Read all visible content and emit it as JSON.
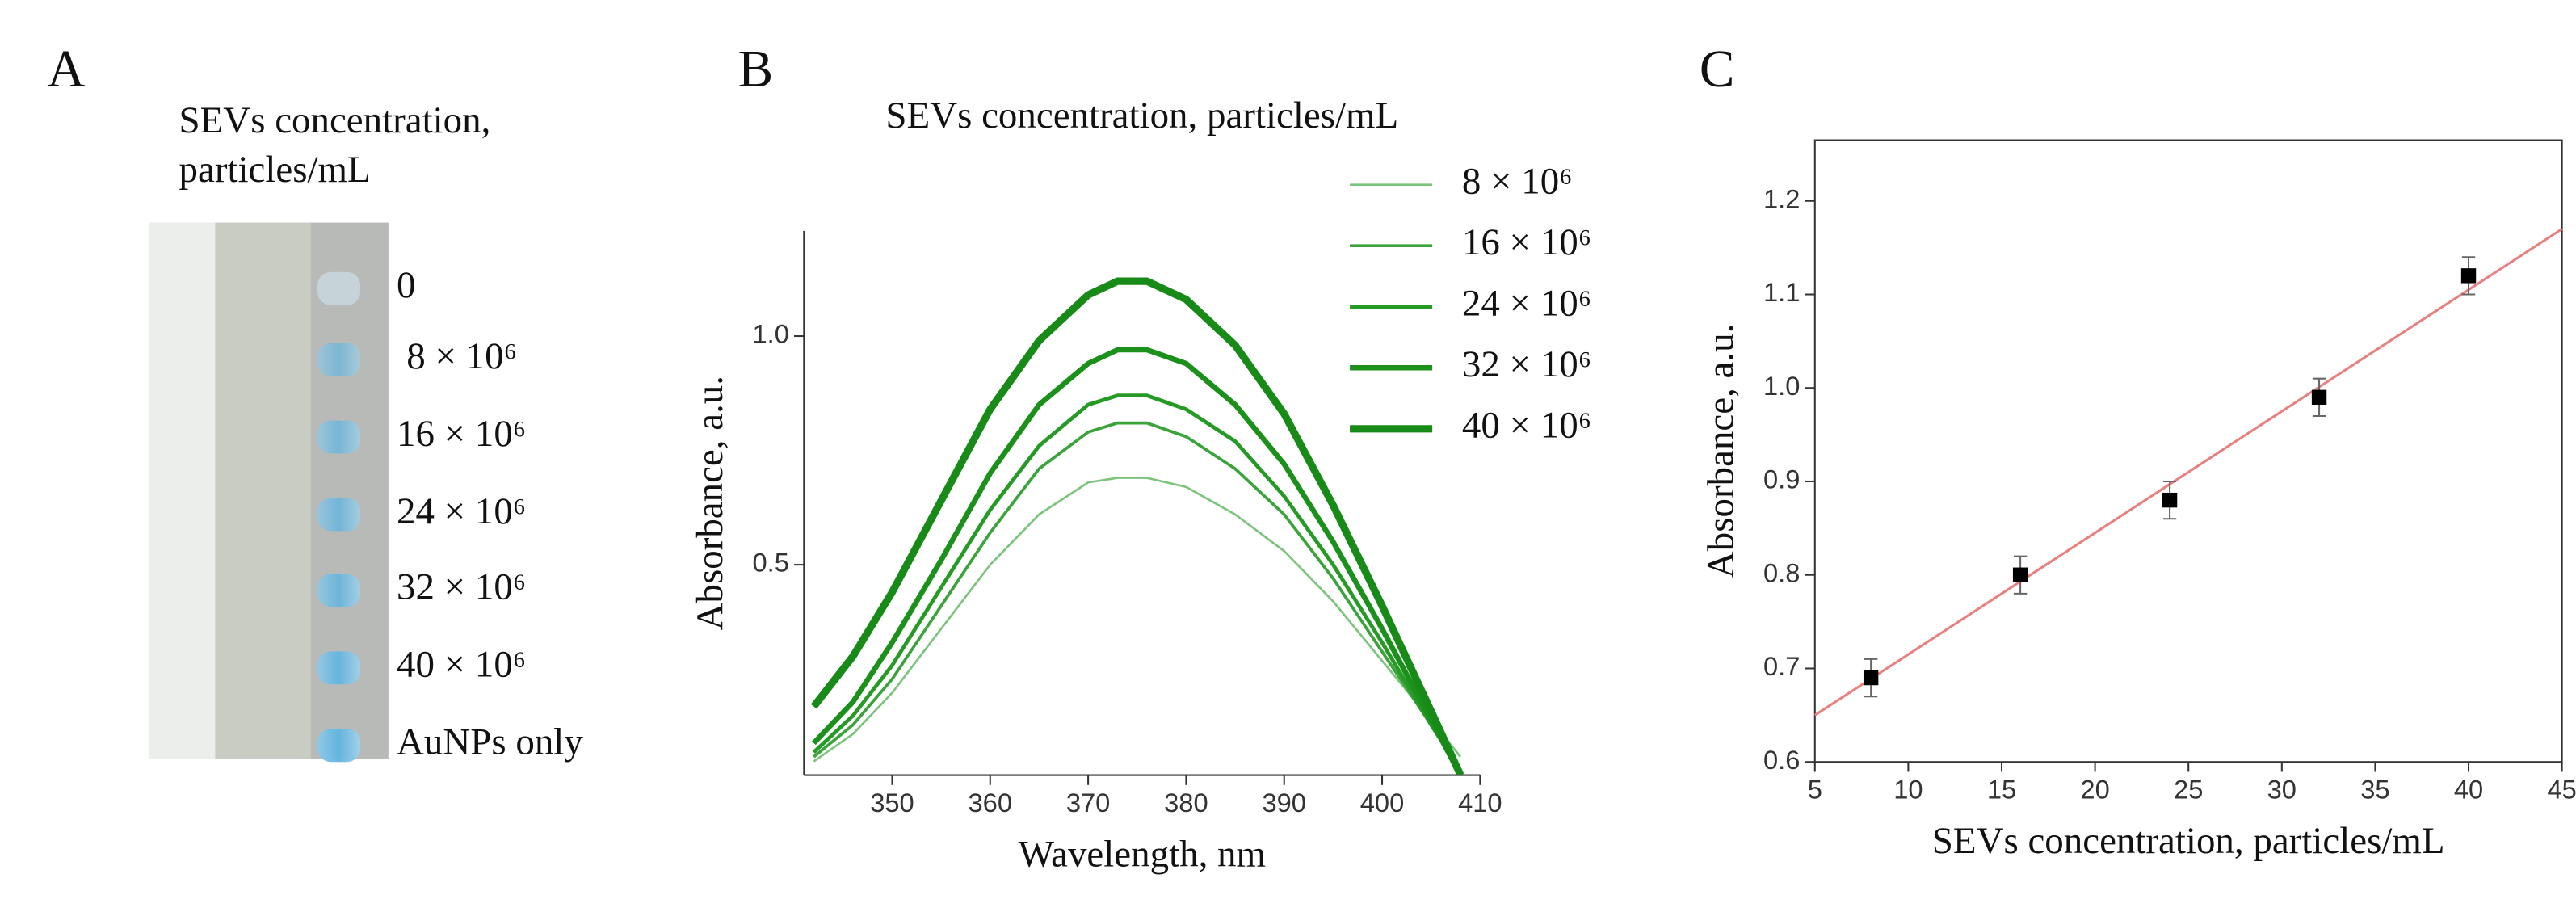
{
  "photo_panel": {
    "letter": "A",
    "title_lines": [
      "SEVs concentration,",
      "particles/mL"
    ],
    "labels": [
      "0",
      "8 × 10⁶",
      "16 × 10⁶",
      "24 × 10⁶",
      "32 × 10⁶",
      "40 × 10⁶",
      "AuNPs  only"
    ]
  },
  "chart_data": [
    {
      "type": "line",
      "letter": "B",
      "title": "SEVs concentration,  particles/mL",
      "x_label": "Wavelength, nm",
      "y_label": "Absorbance, a.u.",
      "x": [
        342,
        346,
        350,
        355,
        360,
        365,
        370,
        373,
        376,
        380,
        385,
        390,
        395,
        400,
        405,
        408
      ],
      "xlim": [
        341,
        410
      ],
      "xticks": [
        350,
        360,
        370,
        380,
        390,
        400,
        410
      ],
      "ylim": [
        0.04,
        1.23
      ],
      "yticks": [
        0.5,
        {
          "value": 1,
          "label": "1.0"
        }
      ],
      "series": [
        {
          "name": "8 × 10⁶",
          "color": "#7cc47c",
          "line_width": 1.3,
          "values": [
            0.07,
            0.13,
            0.22,
            0.36,
            0.5,
            0.61,
            0.68,
            0.69,
            0.69,
            0.67,
            0.61,
            0.53,
            0.42,
            0.29,
            0.16,
            0.08
          ]
        },
        {
          "name": "16 × 10⁶",
          "color": "#3aa33a",
          "line_width": 1.8,
          "values": [
            0.08,
            0.15,
            0.25,
            0.41,
            0.57,
            0.71,
            0.79,
            0.81,
            0.81,
            0.78,
            0.71,
            0.61,
            0.47,
            0.31,
            0.15,
            0.05
          ]
        },
        {
          "name": "24 × 10⁶",
          "color": "#259a25",
          "line_width": 2.3,
          "values": [
            0.09,
            0.17,
            0.28,
            0.45,
            0.62,
            0.76,
            0.85,
            0.87,
            0.87,
            0.84,
            0.77,
            0.65,
            0.5,
            0.33,
            0.15,
            0.05
          ]
        },
        {
          "name": "32 × 10⁶",
          "color": "#1b911b",
          "line_width": 3.2,
          "values": [
            0.11,
            0.2,
            0.33,
            0.51,
            0.7,
            0.85,
            0.94,
            0.97,
            0.97,
            0.94,
            0.85,
            0.72,
            0.55,
            0.36,
            0.16,
            0.04
          ]
        },
        {
          "name": "40 × 10⁶",
          "color": "#178a17",
          "line_width": 4.5,
          "values": [
            0.19,
            0.3,
            0.44,
            0.64,
            0.84,
            0.99,
            1.09,
            1.12,
            1.12,
            1.08,
            0.98,
            0.83,
            0.63,
            0.41,
            0.18,
            0.04
          ]
        }
      ],
      "legend": "upper right"
    },
    {
      "type": "scatter",
      "letter": "C",
      "x_label": "SEVs concentration,  particles/mL",
      "y_label": "Absorbance, a.u.",
      "x": [
        8,
        16,
        24,
        32,
        40
      ],
      "values": [
        0.69,
        0.8,
        0.88,
        0.99,
        1.12
      ],
      "errors": [
        0.02,
        0.02,
        0.02,
        0.02,
        0.02
      ],
      "color": "#000000",
      "fit": {
        "x": [
          5,
          45
        ],
        "values": [
          0.65,
          1.17
        ],
        "color": "#e8807f"
      },
      "xlim": [
        5,
        45
      ],
      "xticks": [
        5,
        10,
        15,
        20,
        25,
        30,
        35,
        40,
        45
      ],
      "ylim": [
        0.6,
        1.265
      ],
      "yticks": [
        0.6,
        0.7,
        0.8,
        0.9,
        {
          "value": 1,
          "label": "1.0"
        },
        1.1,
        1.2
      ]
    }
  ]
}
